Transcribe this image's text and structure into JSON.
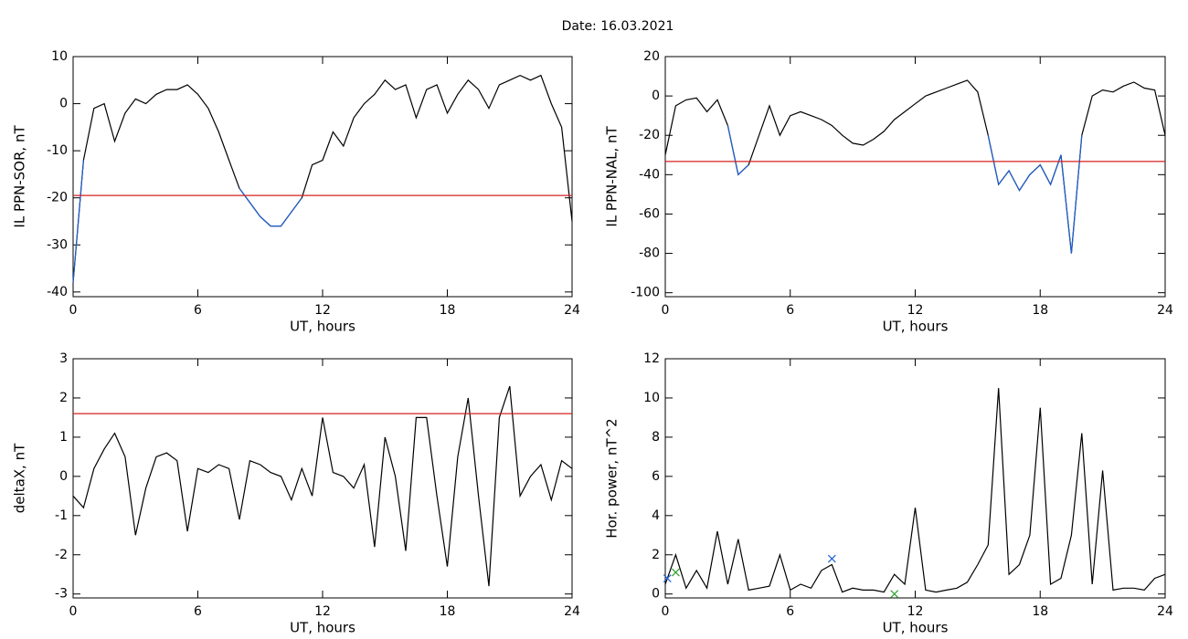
{
  "title": "Date:  16.03.2021",
  "chart_data": [
    {
      "type": "line",
      "ylabel": "IL PPN-SOR, nT",
      "xlabel": "UT, hours",
      "xlim": [
        0,
        24
      ],
      "xticks": [
        0,
        6,
        12,
        18,
        24
      ],
      "ylim": [
        -41,
        10
      ],
      "yticks": [
        10,
        0,
        -10,
        -20,
        -30,
        -40
      ],
      "threshold": {
        "value": -19.5,
        "color": "#d62020"
      },
      "x": [
        0,
        0.5,
        1,
        1.5,
        2,
        2.5,
        3,
        3.5,
        4,
        4.5,
        5,
        5.5,
        6,
        6.5,
        7,
        7.5,
        8,
        8.5,
        9,
        9.5,
        10,
        10.5,
        11,
        11.5,
        12,
        12.5,
        13,
        13.5,
        14,
        14.5,
        15,
        15.5,
        16,
        16.5,
        17,
        17.5,
        18,
        18.5,
        19,
        19.5,
        20,
        20.5,
        21,
        21.5,
        22,
        22.5,
        23,
        23.5,
        24
      ],
      "series": [
        {
          "color": "#000000",
          "values": [
            -38,
            -12,
            -1,
            0,
            -8,
            -2,
            1,
            0,
            2,
            3,
            3,
            4,
            2,
            -1,
            -6,
            -12,
            -18,
            -21,
            -24,
            -26,
            -26,
            -23,
            -20,
            -13,
            -12,
            -6,
            -9,
            -3,
            0,
            2,
            5,
            3,
            4,
            -3,
            3,
            4,
            -2,
            2,
            5,
            3,
            -1,
            4,
            5,
            6,
            5,
            6,
            0,
            -5,
            -25
          ]
        },
        {
          "color": "#1f5fd0",
          "values": [
            -38,
            -12,
            null,
            null,
            null,
            null,
            null,
            null,
            null,
            null,
            null,
            null,
            null,
            null,
            null,
            null,
            -18,
            -21,
            -24,
            -26,
            -26,
            -23,
            -20,
            null,
            null,
            null,
            null,
            null,
            null,
            null,
            null,
            null,
            null,
            null,
            null,
            null,
            null,
            null,
            null,
            null,
            null,
            null,
            null,
            null,
            null,
            null,
            null,
            null,
            null
          ]
        }
      ]
    },
    {
      "type": "line",
      "ylabel": "IL PPN-NAL, nT",
      "xlabel": "UT, hours",
      "xlim": [
        0,
        24
      ],
      "xticks": [
        0,
        6,
        12,
        18,
        24
      ],
      "ylim": [
        -102,
        20
      ],
      "yticks": [
        20,
        0,
        -20,
        -40,
        -60,
        -80,
        -100
      ],
      "threshold": {
        "value": -33.3,
        "color": "#d62020"
      },
      "x": [
        0,
        0.5,
        1,
        1.5,
        2,
        2.5,
        3,
        3.5,
        4,
        4.5,
        5,
        5.5,
        6,
        6.5,
        7,
        7.5,
        8,
        8.5,
        9,
        9.5,
        10,
        10.5,
        11,
        11.5,
        12,
        12.5,
        13,
        13.5,
        14,
        14.5,
        15,
        15.5,
        16,
        16.5,
        17,
        17.5,
        18,
        18.5,
        19,
        19.5,
        20,
        20.5,
        21,
        21.5,
        22,
        22.5,
        23,
        23.5,
        24
      ],
      "series": [
        {
          "color": "#000000",
          "values": [
            -30,
            -5,
            -2,
            -1,
            -8,
            -2,
            -15,
            -40,
            -35,
            -20,
            -5,
            -20,
            -10,
            -8,
            -10,
            -12,
            -15,
            -20,
            -24,
            -25,
            -22,
            -18,
            -12,
            -8,
            -4,
            0,
            2,
            4,
            6,
            8,
            2,
            -20,
            -45,
            -38,
            -48,
            -40,
            -35,
            -45,
            -30,
            -80,
            -20,
            0,
            3,
            2,
            5,
            7,
            4,
            3,
            -20
          ]
        },
        {
          "color": "#1f5fd0",
          "values": [
            null,
            null,
            null,
            null,
            null,
            null,
            -15,
            -40,
            -35,
            null,
            null,
            null,
            null,
            null,
            null,
            null,
            null,
            null,
            null,
            null,
            null,
            null,
            null,
            null,
            null,
            null,
            null,
            null,
            null,
            null,
            null,
            -20,
            -45,
            -38,
            -48,
            -40,
            -35,
            -45,
            -30,
            -80,
            -20,
            null,
            null,
            null,
            null,
            null,
            null,
            null,
            null
          ]
        }
      ]
    },
    {
      "type": "line",
      "ylabel": "deltaX, nT",
      "xlabel": "UT, hours",
      "xlim": [
        0,
        24
      ],
      "xticks": [
        0,
        6,
        12,
        18,
        24
      ],
      "ylim": [
        -3.1,
        3
      ],
      "yticks": [
        3,
        2,
        1,
        0,
        -1,
        -2,
        -3
      ],
      "threshold": {
        "value": 1.6,
        "color": "#d62020"
      },
      "x": [
        0,
        0.5,
        1,
        1.5,
        2,
        2.5,
        3,
        3.5,
        4,
        4.5,
        5,
        5.5,
        6,
        6.5,
        7,
        7.5,
        8,
        8.5,
        9,
        9.5,
        10,
        10.5,
        11,
        11.5,
        12,
        12.5,
        13,
        13.5,
        14,
        14.5,
        15,
        15.5,
        16,
        16.5,
        17,
        17.5,
        18,
        18.5,
        19,
        19.5,
        20,
        20.5,
        21,
        21.5,
        22,
        22.5,
        23,
        23.5,
        24
      ],
      "series": [
        {
          "color": "#000000",
          "values": [
            -0.5,
            -0.8,
            0.2,
            0.7,
            1.1,
            0.5,
            -1.5,
            -0.3,
            0.5,
            0.6,
            0.4,
            -1.4,
            0.2,
            0.1,
            0.3,
            0.2,
            -1.1,
            0.4,
            0.3,
            0.1,
            0.0,
            -0.6,
            0.2,
            -0.5,
            1.5,
            0.1,
            0.0,
            -0.3,
            0.3,
            -1.8,
            1.0,
            0.0,
            -1.9,
            1.5,
            1.5,
            -0.5,
            -2.3,
            0.5,
            2.0,
            -0.5,
            -2.8,
            1.5,
            2.3,
            -0.5,
            0.0,
            0.3,
            -0.6,
            0.4,
            0.2
          ]
        }
      ]
    },
    {
      "type": "line",
      "ylabel": "Hor. power, nT^2",
      "xlabel": "UT, hours",
      "xlim": [
        0,
        24
      ],
      "xticks": [
        0,
        6,
        12,
        18,
        24
      ],
      "ylim": [
        -0.2,
        12
      ],
      "yticks": [
        12,
        10,
        8,
        6,
        4,
        2,
        0
      ],
      "x": [
        0,
        0.5,
        1,
        1.5,
        2,
        2.5,
        3,
        3.5,
        4,
        4.5,
        5,
        5.5,
        6,
        6.5,
        7,
        7.5,
        8,
        8.5,
        9,
        9.5,
        10,
        10.5,
        11,
        11.5,
        12,
        12.5,
        13,
        13.5,
        14,
        14.5,
        15,
        15.5,
        16,
        16.5,
        17,
        17.5,
        18,
        18.5,
        19,
        19.5,
        20,
        20.5,
        21,
        21.5,
        22,
        22.5,
        23,
        23.5,
        24
      ],
      "series": [
        {
          "color": "#000000",
          "values": [
            0.5,
            2.0,
            0.3,
            1.2,
            0.3,
            3.2,
            0.5,
            2.8,
            0.2,
            0.3,
            0.4,
            2.0,
            0.2,
            0.5,
            0.3,
            1.2,
            1.5,
            0.1,
            0.3,
            0.2,
            0.2,
            0.1,
            1.0,
            0.5,
            4.4,
            0.2,
            0.1,
            0.2,
            0.3,
            0.6,
            1.5,
            2.5,
            10.5,
            1.0,
            1.5,
            3.0,
            9.5,
            0.5,
            0.8,
            3.0,
            8.2,
            0.5,
            6.3,
            0.2,
            0.3,
            0.3,
            0.2,
            0.8,
            1.0
          ]
        }
      ],
      "points": [
        {
          "x": 0.1,
          "y": 0.8,
          "color": "#1f5fd0"
        },
        {
          "x": 8,
          "y": 1.8,
          "color": "#1f5fd0"
        },
        {
          "x": 0.5,
          "y": 1.1,
          "color": "#2ca02c"
        },
        {
          "x": 11,
          "y": 0,
          "color": "#2ca02c"
        }
      ]
    }
  ]
}
